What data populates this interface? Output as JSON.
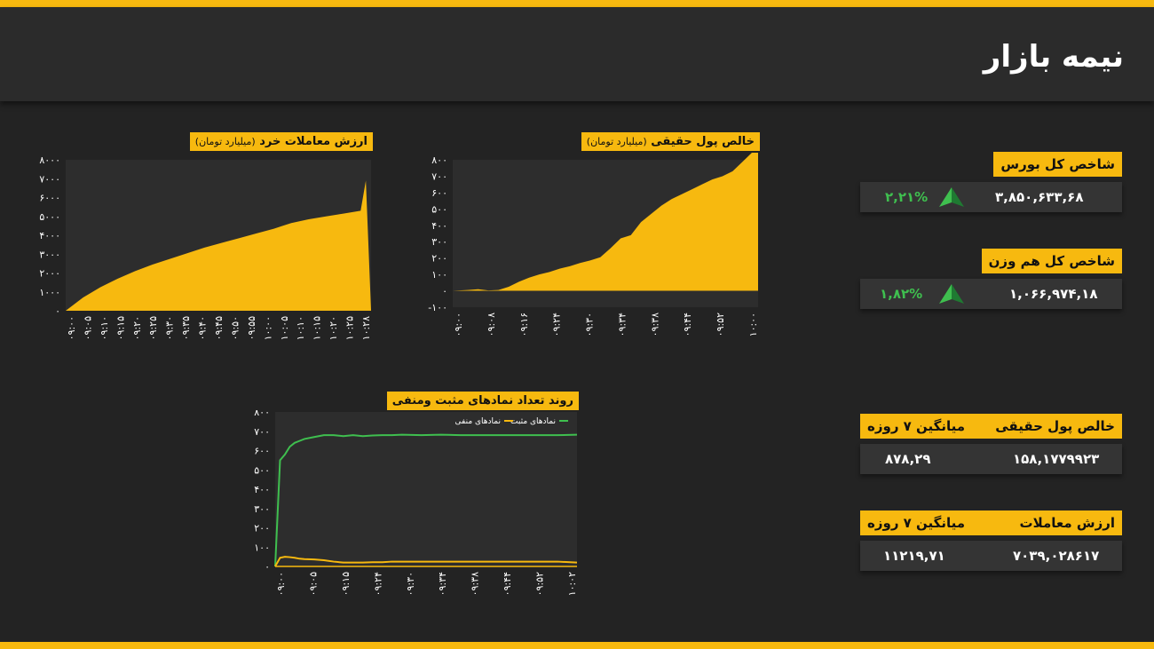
{
  "header": {
    "title": "نیمه بازار"
  },
  "indices": {
    "total": {
      "label": "شاخص کل بورس",
      "value": "۳,۸۵۰,۶۳۳,۶۸",
      "change": "۲,۲۱%"
    },
    "equal": {
      "label": "شاخص کل هم وزن",
      "value": "۱,۰۶۶,۹۷۴,۱۸",
      "change": "۱,۸۲%"
    }
  },
  "real_money": {
    "label": "خالص پول حقیقی",
    "avg_label": "میانگین ۷ روزه",
    "value": "۱۵۸,۱۷۷۹۹۲۳",
    "avg": "۸۷۸,۲۹"
  },
  "trade_value": {
    "label": "ارزش معاملات",
    "avg_label": "میانگین ۷ روزه",
    "value": "۷۰۳۹,۰۲۸۶۱۷",
    "avg": "۱۱۲۱۹,۷۱"
  },
  "colors": {
    "accent": "#f7b90f",
    "positive": "#3fbf4f",
    "panel": "#343434"
  },
  "chart_data": [
    {
      "id": "retail",
      "type": "area",
      "title": "ارزش معاملات خرد",
      "unit": "(میلیارد تومان)",
      "ylim": [
        0,
        8000
      ],
      "y_ticks": [
        "۸۰۰۰",
        "۷۰۰۰",
        "۶۰۰۰",
        "۵۰۰۰",
        "۴۰۰۰",
        "۳۰۰۰",
        "۲۰۰۰",
        "۱۰۰۰",
        "۰"
      ],
      "x_ticks": [
        "۰۹:۰۰",
        "۰۹:۰۵",
        "۰۹:۱۰",
        "۰۹:۱۵",
        "۰۹:۲۰",
        "۰۹:۲۵",
        "۰۹:۳۰",
        "۰۹:۳۵",
        "۰۹:۴۰",
        "۰۹:۴۵",
        "۰۹:۵۰",
        "۰۹:۵۵",
        "۱۰:۰۰",
        "۱۰:۰۵",
        "۱۰:۱۰",
        "۱۰:۱۵",
        "۱۰:۲۰",
        "۱۰:۲۵",
        "۱۰:۲۸"
      ],
      "x": [
        0,
        5,
        10,
        15,
        20,
        25,
        30,
        35,
        40,
        45,
        50,
        55,
        60,
        65,
        70,
        75,
        80,
        85,
        86.5,
        88
      ],
      "values": [
        0,
        700,
        1250,
        1700,
        2100,
        2450,
        2750,
        3050,
        3350,
        3600,
        3850,
        4100,
        4350,
        4650,
        4850,
        5000,
        5150,
        5300,
        6900,
        0
      ]
    },
    {
      "id": "realmoney",
      "type": "area",
      "title": "خالص پول حقیقی",
      "unit": "(میلیارد تومان)",
      "ylim": [
        -100,
        800
      ],
      "y_ticks": [
        "۸۰۰",
        "۷۰۰",
        "۶۰۰",
        "۵۰۰",
        "۴۰۰",
        "۳۰۰",
        "۲۰۰",
        "۱۰۰",
        "۰",
        "-۱۰۰"
      ],
      "x_ticks": [
        "۰۹:۰۰",
        "۰۹:۰۸",
        "۰۹:۱۶",
        "۰۹:۲۴",
        "۰۹:۳۰",
        "۰۹:۳۴",
        "۰۹:۳۸",
        "۰۹:۴۴",
        "۰۹:۵۲",
        "۱۰:۰۰"
      ],
      "x": [
        0,
        3,
        5,
        7,
        9,
        11,
        13,
        15,
        17,
        19,
        21,
        23,
        25,
        27,
        29,
        31,
        33,
        35,
        37,
        39,
        41,
        43,
        45,
        47,
        49,
        51,
        53,
        55,
        57,
        59,
        60
      ],
      "values": [
        0,
        5,
        10,
        2,
        5,
        25,
        55,
        80,
        100,
        115,
        135,
        150,
        170,
        185,
        205,
        260,
        320,
        340,
        420,
        470,
        520,
        560,
        590,
        620,
        650,
        680,
        700,
        730,
        790,
        850,
        870
      ]
    },
    {
      "id": "symbols",
      "type": "line",
      "title": "روند تعداد نمادهای مثبت ومنفی",
      "ylim": [
        0,
        800
      ],
      "y_ticks": [
        "۸۰۰",
        "۷۰۰",
        "۶۰۰",
        "۵۰۰",
        "۴۰۰",
        "۳۰۰",
        "۲۰۰",
        "۱۰۰",
        "۰"
      ],
      "x_ticks": [
        "۰۹:۰۰",
        "۰۹:۰۵",
        "۰۹:۱۵",
        "۰۹:۲۴",
        "۰۹:۳۰",
        "۰۹:۳۴",
        "۰۹:۳۸",
        "۰۹:۴۴",
        "۰۹:۵۲",
        "۱۰:۰۲"
      ],
      "x": [
        0,
        1,
        2,
        3,
        4,
        5,
        6,
        8,
        10,
        12,
        14,
        16,
        18,
        20,
        22,
        24,
        26,
        30,
        34,
        38,
        42,
        46,
        50,
        54,
        58,
        62
      ],
      "series": [
        {
          "name": "نمادهای مثبت",
          "color": "#3fbf4f",
          "values": [
            0,
            550,
            580,
            620,
            640,
            650,
            660,
            670,
            680,
            680,
            675,
            680,
            675,
            678,
            680,
            680,
            682,
            680,
            682,
            680,
            680,
            680,
            680,
            680,
            680,
            682
          ]
        },
        {
          "name": "نمادهای منفی",
          "color": "#f7b90f",
          "values": [
            0,
            45,
            50,
            48,
            45,
            40,
            38,
            36,
            32,
            25,
            20,
            20,
            20,
            22,
            22,
            25,
            25,
            25,
            25,
            25,
            25,
            25,
            25,
            25,
            25,
            20
          ]
        }
      ]
    }
  ]
}
